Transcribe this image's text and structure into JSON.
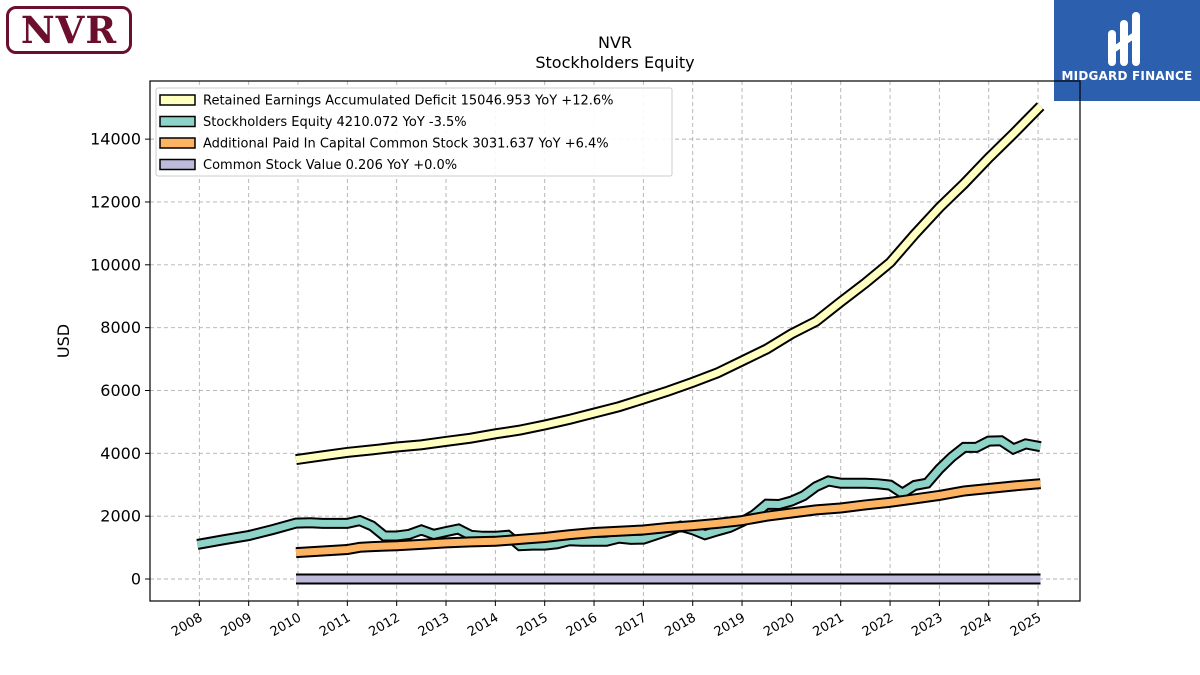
{
  "header": {
    "company_logo_text": "NVR",
    "brand_logo_text": "MIDGARD FINANCE"
  },
  "chart_data": {
    "type": "line",
    "title": "NVR",
    "subtitle": "Stockholders  Equity",
    "ylabel": "USD",
    "xlabel": "",
    "ylim": [
      -700,
      15850
    ],
    "xlim": [
      2007.0,
      2025.85
    ],
    "yticks": [
      0,
      2000,
      4000,
      6000,
      8000,
      10000,
      12000,
      14000
    ],
    "xticks": [
      2008,
      2009,
      2010,
      2011,
      2012,
      2013,
      2014,
      2015,
      2016,
      2017,
      2018,
      2019,
      2020,
      2021,
      2022,
      2023,
      2024,
      2025
    ],
    "grid": true,
    "legend_position": "top-left",
    "series": [
      {
        "name": "Retained Earnings Accumulated Deficit",
        "legend_label": "Retained Earnings Accumulated Deficit  15046.953 YoY +12.6%",
        "color": "#ffffbf",
        "x": [
          2009.96,
          2010.5,
          2011.0,
          2011.5,
          2012.0,
          2012.5,
          2013.0,
          2013.5,
          2014.0,
          2014.5,
          2015.0,
          2015.5,
          2016.0,
          2016.5,
          2017.0,
          2017.5,
          2018.0,
          2018.5,
          2019.0,
          2019.5,
          2020.0,
          2020.5,
          2021.0,
          2021.5,
          2022.0,
          2022.5,
          2023.0,
          2023.5,
          2024.0,
          2024.5,
          2025.05
        ],
        "y": [
          3800,
          3920,
          4030,
          4110,
          4200,
          4270,
          4380,
          4480,
          4620,
          4740,
          4900,
          5080,
          5280,
          5480,
          5730,
          5980,
          6260,
          6560,
          6940,
          7320,
          7800,
          8200,
          8820,
          9420,
          10070,
          10970,
          11820,
          12580,
          13400,
          14170,
          15047
        ]
      },
      {
        "name": "Stockholders Equity",
        "legend_label": "Stockholders Equity  4210.072 YoY -3.5%",
        "color": "#8dd3c7",
        "x": [
          2007.96,
          2008.5,
          2009.0,
          2009.5,
          2009.96,
          2010.25,
          2010.5,
          2010.75,
          2011.0,
          2011.25,
          2011.5,
          2011.75,
          2012.0,
          2012.25,
          2012.5,
          2012.75,
          2013.0,
          2013.25,
          2013.5,
          2013.75,
          2014.0,
          2014.25,
          2014.5,
          2014.75,
          2015.0,
          2015.25,
          2015.5,
          2015.75,
          2016.0,
          2016.25,
          2016.5,
          2016.75,
          2017.0,
          2017.25,
          2017.5,
          2017.75,
          2018.0,
          2018.25,
          2018.5,
          2018.75,
          2019.0,
          2019.25,
          2019.5,
          2019.75,
          2020.0,
          2020.25,
          2020.5,
          2020.75,
          2021.0,
          2021.25,
          2021.5,
          2021.75,
          2022.0,
          2022.25,
          2022.5,
          2022.75,
          2023.0,
          2023.25,
          2023.5,
          2023.75,
          2024.0,
          2024.25,
          2024.5,
          2024.75,
          2025.05
        ],
        "y": [
          1100,
          1250,
          1380,
          1580,
          1780,
          1790,
          1770,
          1770,
          1770,
          1860,
          1690,
          1370,
          1370,
          1420,
          1560,
          1420,
          1510,
          1590,
          1390,
          1360,
          1360,
          1390,
          1060,
          1080,
          1080,
          1120,
          1220,
          1200,
          1200,
          1200,
          1300,
          1260,
          1270,
          1400,
          1530,
          1680,
          1570,
          1410,
          1530,
          1640,
          1820,
          2050,
          2380,
          2370,
          2480,
          2650,
          2940,
          3120,
          3050,
          3050,
          3050,
          3030,
          2990,
          2730,
          2980,
          3050,
          3500,
          3880,
          4190,
          4190,
          4390,
          4400,
          4140,
          4300,
          4210
        ]
      },
      {
        "name": "Additional Paid In Capital Common Stock",
        "legend_label": "Additional Paid In Capital Common Stock  3031.637 YoY +6.4%",
        "color": "#fdb462",
        "x": [
          2009.96,
          2010.5,
          2011.0,
          2011.25,
          2011.5,
          2012.0,
          2012.5,
          2013.0,
          2013.5,
          2014.0,
          2014.5,
          2015.0,
          2015.5,
          2016.0,
          2016.5,
          2017.0,
          2017.5,
          2018.0,
          2018.5,
          2019.0,
          2019.5,
          2020.0,
          2020.5,
          2021.0,
          2021.5,
          2022.0,
          2022.5,
          2023.0,
          2023.5,
          2024.0,
          2024.5,
          2025.05
        ],
        "y": [
          840,
          890,
          940,
          1010,
          1030,
          1060,
          1100,
          1150,
          1180,
          1200,
          1260,
          1320,
          1410,
          1480,
          1520,
          1560,
          1640,
          1700,
          1770,
          1860,
          2000,
          2100,
          2200,
          2260,
          2360,
          2440,
          2550,
          2660,
          2800,
          2880,
          2960,
          3032
        ]
      },
      {
        "name": "Common Stock Value",
        "legend_label": "Common Stock Value  0.206 YoY +0.0%",
        "color": "#bebada",
        "x": [
          2009.96,
          2011.0,
          2012.0,
          2013.0,
          2014.0,
          2015.0,
          2016.0,
          2017.0,
          2018.0,
          2019.0,
          2020.0,
          2021.0,
          2022.0,
          2023.0,
          2024.0,
          2025.05
        ],
        "y": [
          0.206,
          0.206,
          0.206,
          0.206,
          0.206,
          0.206,
          0.206,
          0.206,
          0.206,
          0.206,
          0.206,
          0.206,
          0.206,
          0.206,
          0.206,
          0.206
        ]
      }
    ]
  }
}
